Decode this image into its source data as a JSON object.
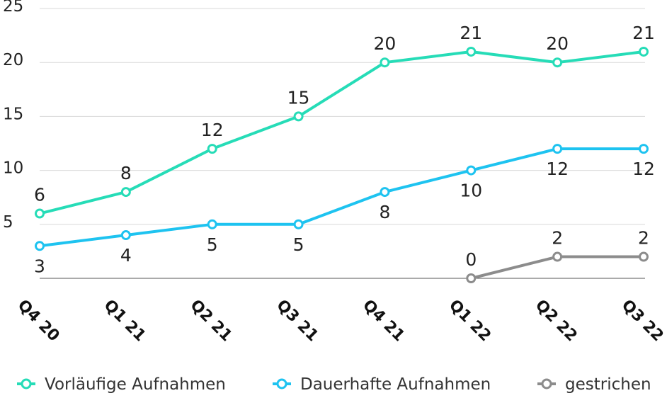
{
  "chart_data": {
    "type": "line",
    "categories": [
      "Q4 20",
      "Q1 21",
      "Q2 21",
      "Q3 21",
      "Q4 21",
      "Q1 22",
      "Q2 22",
      "Q3 22"
    ],
    "ylim": [
      0,
      25
    ],
    "yticks": [
      "5",
      "10",
      "15",
      "20",
      "25"
    ],
    "grid": true,
    "legend_position": "bottom",
    "series": [
      {
        "name": "Vorläufige Aufnahmen",
        "color": "#26dcb7",
        "values": [
          6,
          8,
          12,
          15,
          20,
          21,
          20,
          21
        ],
        "labels": [
          "6",
          "8",
          "12",
          "15",
          "20",
          "21",
          "20",
          "21"
        ],
        "label_position": "above"
      },
      {
        "name": "Dauerhafte Aufnahmen",
        "color": "#1ec3f0",
        "values": [
          3,
          4,
          5,
          5,
          8,
          10,
          12,
          12
        ],
        "labels": [
          "3",
          "4",
          "5",
          "5",
          "8",
          "10",
          "12",
          "12"
        ],
        "label_position": "below"
      },
      {
        "name": "gestrichen",
        "color": "#8c8c8c",
        "values": [
          null,
          null,
          null,
          null,
          null,
          0,
          2,
          2
        ],
        "labels": [
          "",
          "",
          "",
          "",
          "",
          "0",
          "2",
          "2"
        ],
        "label_position": "above"
      }
    ]
  }
}
